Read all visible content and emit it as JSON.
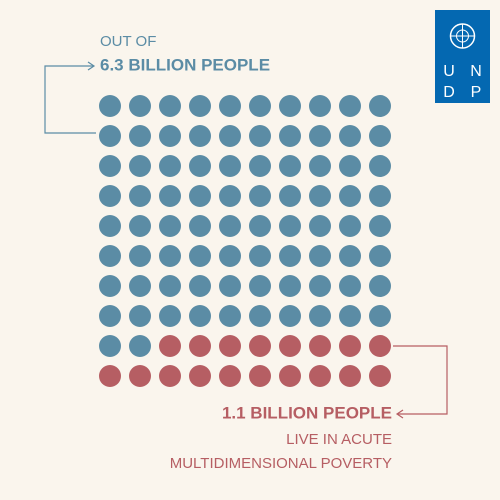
{
  "chart_data": {
    "type": "waffle",
    "top_label": [
      "OUT OF",
      "6.3 BILLION PEOPLE"
    ],
    "bottom_label": [
      "1.1 BILLION PEOPLE",
      "LIVE IN ACUTE",
      "MULTIDIMENSIONAL POVERTY"
    ],
    "values": [
      82,
      18
    ],
    "colors": [
      "#5b8ca5",
      "#b65e63"
    ]
  },
  "logo": {
    "letters": [
      "U",
      "N",
      "D",
      "P"
    ]
  }
}
